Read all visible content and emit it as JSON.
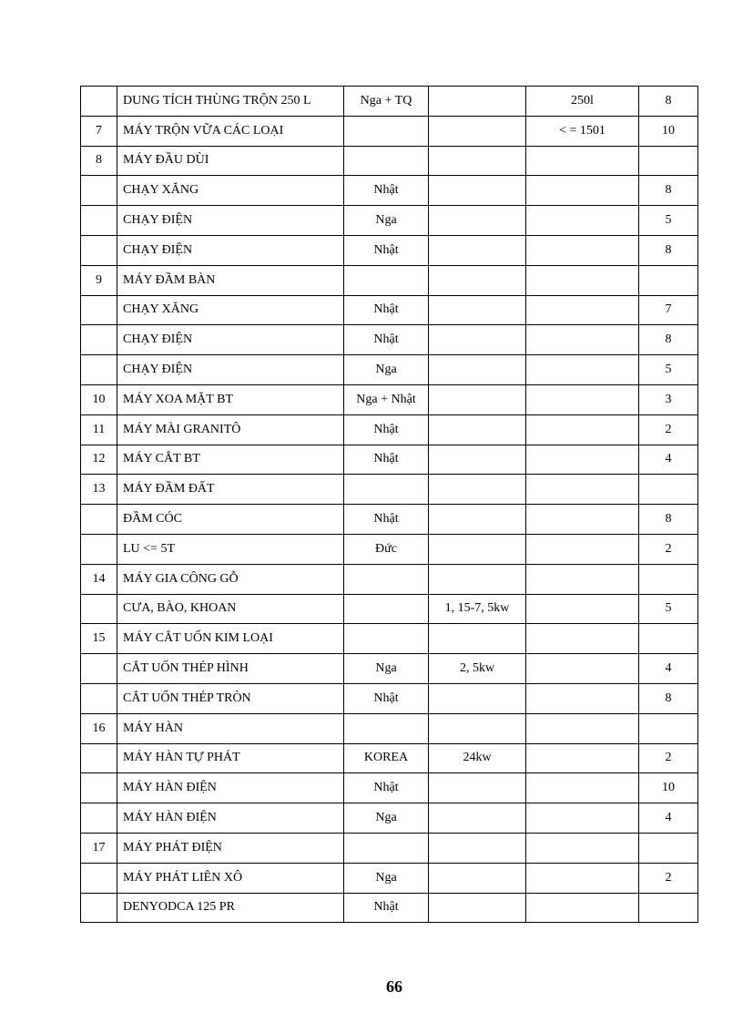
{
  "rows": [
    [
      "",
      "DUNG TÍCH THÙNG TRỘN 250  L",
      "Nga + TQ",
      "",
      "250l",
      "8"
    ],
    [
      "7",
      "MÁY TRỘN VỮA CÁC LOẠI",
      "",
      "",
      "< = 1501",
      "10"
    ],
    [
      "8",
      "MÁY ĐẦU DÙI",
      "",
      "",
      "",
      ""
    ],
    [
      "",
      "CHẠY XĂNG",
      "Nhật",
      "",
      "",
      "8"
    ],
    [
      "",
      "CHẠY ĐIỆN",
      "Nga",
      "",
      "",
      "5"
    ],
    [
      "",
      "CHẠY ĐIỆN",
      "Nhật",
      "",
      "",
      "8"
    ],
    [
      "9",
      "MÁY ĐẦM BÀN",
      "",
      "",
      "",
      ""
    ],
    [
      "",
      "CHẠY XĂNG",
      "Nhật",
      "",
      "",
      "7"
    ],
    [
      "",
      "CHẠY ĐIỆN",
      "Nhật",
      "",
      "",
      "8"
    ],
    [
      "",
      "CHẠY ĐIỆN",
      "Nga",
      "",
      "",
      "5"
    ],
    [
      "10",
      "MÁY XOA MẶT BT",
      "Nga + Nhật",
      "",
      "",
      "3"
    ],
    [
      "11",
      "MÁY MÀI GRANITÔ",
      "Nhật",
      "",
      "",
      "2"
    ],
    [
      "12",
      "MÁY CẮT BT",
      "Nhật",
      "",
      "",
      "4"
    ],
    [
      "13",
      "MÁY ĐẦM ĐẤT",
      "",
      "",
      "",
      ""
    ],
    [
      "",
      "ĐẦM CÓC",
      "Nhật",
      "",
      "",
      "8"
    ],
    [
      "",
      "LU <= 5T",
      "Đức",
      "",
      "",
      "2"
    ],
    [
      "14",
      "MÁY GIA CÔNG GỖ",
      "",
      "",
      "",
      ""
    ],
    [
      "",
      "CƯA, BÀO, KHOAN",
      "",
      "1, 15-7,  5kw",
      "",
      "5"
    ],
    [
      "15",
      "MÁY CẮT UỐN KIM LOẠI",
      "",
      "",
      "",
      ""
    ],
    [
      "",
      "CẮT UỐN THÉP HÌNH",
      "Nga",
      "2, 5kw",
      "",
      "4"
    ],
    [
      "",
      "CẮT UỐN THÉP TRÒN",
      "Nhật",
      "",
      "",
      "8"
    ],
    [
      "16",
      "MÁY HÀN",
      "",
      "",
      "",
      ""
    ],
    [
      "",
      "MÁY HÀN TỰ PHÁT",
      "KOREA",
      "24kw",
      "",
      "2"
    ],
    [
      "",
      "MÁY HÀN ĐIỆN",
      "Nhật",
      "",
      "",
      "10"
    ],
    [
      "",
      "MÁY HÀN ĐIỆN",
      "Nga",
      "",
      "",
      "4"
    ],
    [
      "17",
      "MÁY PHÁT ĐIỆN",
      "",
      "",
      "",
      ""
    ],
    [
      "",
      "MÁY PHÁT LIÊN XÔ",
      "Nga",
      "",
      "",
      "2"
    ],
    [
      "",
      "DENYODCA 125 PR",
      "Nhật",
      "",
      "",
      ""
    ]
  ],
  "page_number": "66"
}
